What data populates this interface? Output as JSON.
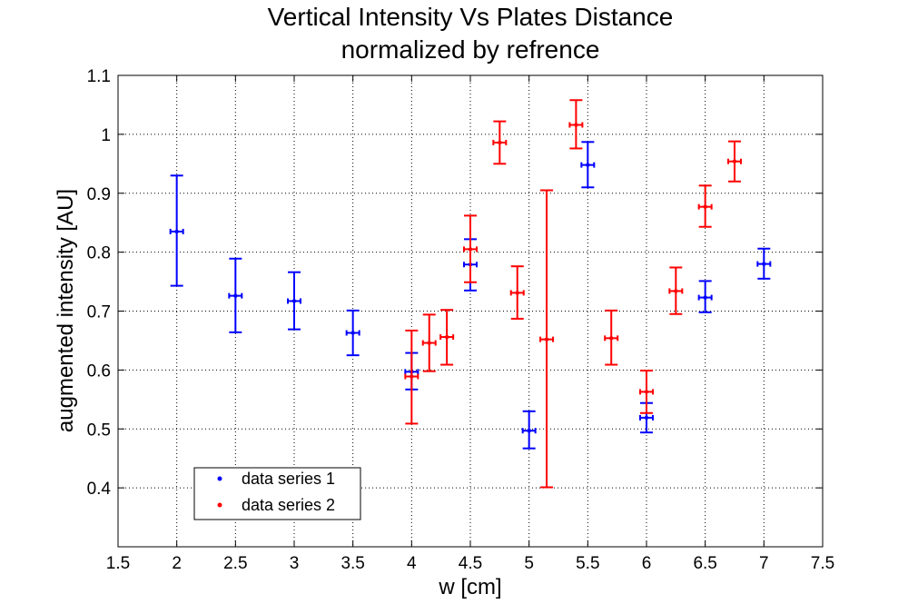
{
  "chart_data": {
    "type": "scatter",
    "title": [
      "Vertical Intensity Vs Plates Distance",
      "normalized by refrence"
    ],
    "xlabel": "w [cm]",
    "ylabel": "augmented intensity [AU]",
    "xlim": [
      1.5,
      7.5
    ],
    "ylim": [
      0.3,
      1.1
    ],
    "xticks": [
      "1.5",
      "2",
      "2.5",
      "3",
      "3.5",
      "4",
      "4.5",
      "5",
      "5.5",
      "6",
      "6.5",
      "7",
      "7.5"
    ],
    "yticks": [
      "0.4",
      "0.5",
      "0.6",
      "0.7",
      "0.8",
      "0.9",
      "1",
      "1.1"
    ],
    "grid": true,
    "legend_position": "bottom-left",
    "error_bars": true,
    "series": [
      {
        "name": "data series 1",
        "color": "#0000ff",
        "points": [
          {
            "x": 2.0,
            "y": 0.835,
            "ylow": 0.743,
            "yhigh": 0.93
          },
          {
            "x": 2.5,
            "y": 0.726,
            "ylow": 0.664,
            "yhigh": 0.789
          },
          {
            "x": 3.0,
            "y": 0.717,
            "ylow": 0.669,
            "yhigh": 0.766
          },
          {
            "x": 3.5,
            "y": 0.663,
            "ylow": 0.625,
            "yhigh": 0.701
          },
          {
            "x": 4.0,
            "y": 0.597,
            "ylow": 0.567,
            "yhigh": 0.629
          },
          {
            "x": 4.5,
            "y": 0.779,
            "ylow": 0.735,
            "yhigh": 0.822
          },
          {
            "x": 5.0,
            "y": 0.497,
            "ylow": 0.467,
            "yhigh": 0.53
          },
          {
            "x": 5.5,
            "y": 0.948,
            "ylow": 0.91,
            "yhigh": 0.987
          },
          {
            "x": 6.0,
            "y": 0.519,
            "ylow": 0.494,
            "yhigh": 0.544
          },
          {
            "x": 6.5,
            "y": 0.723,
            "ylow": 0.698,
            "yhigh": 0.751
          },
          {
            "x": 7.0,
            "y": 0.78,
            "ylow": 0.755,
            "yhigh": 0.806
          }
        ]
      },
      {
        "name": "data series 2",
        "color": "#ff0000",
        "points": [
          {
            "x": 4.0,
            "y": 0.589,
            "ylow": 0.509,
            "yhigh": 0.667
          },
          {
            "x": 4.15,
            "y": 0.646,
            "ylow": 0.598,
            "yhigh": 0.694
          },
          {
            "x": 4.3,
            "y": 0.656,
            "ylow": 0.609,
            "yhigh": 0.702
          },
          {
            "x": 4.5,
            "y": 0.805,
            "ylow": 0.749,
            "yhigh": 0.862
          },
          {
            "x": 4.75,
            "y": 0.986,
            "ylow": 0.95,
            "yhigh": 1.022
          },
          {
            "x": 4.9,
            "y": 0.731,
            "ylow": 0.687,
            "yhigh": 0.776
          },
          {
            "x": 5.15,
            "y": 0.652,
            "ylow": 0.401,
            "yhigh": 0.905
          },
          {
            "x": 5.4,
            "y": 1.016,
            "ylow": 0.976,
            "yhigh": 1.058
          },
          {
            "x": 5.7,
            "y": 0.654,
            "ylow": 0.609,
            "yhigh": 0.701
          },
          {
            "x": 6.0,
            "y": 0.563,
            "ylow": 0.527,
            "yhigh": 0.599
          },
          {
            "x": 6.25,
            "y": 0.734,
            "ylow": 0.695,
            "yhigh": 0.774
          },
          {
            "x": 6.5,
            "y": 0.877,
            "ylow": 0.843,
            "yhigh": 0.913
          },
          {
            "x": 6.75,
            "y": 0.954,
            "ylow": 0.92,
            "yhigh": 0.988
          }
        ]
      }
    ]
  }
}
